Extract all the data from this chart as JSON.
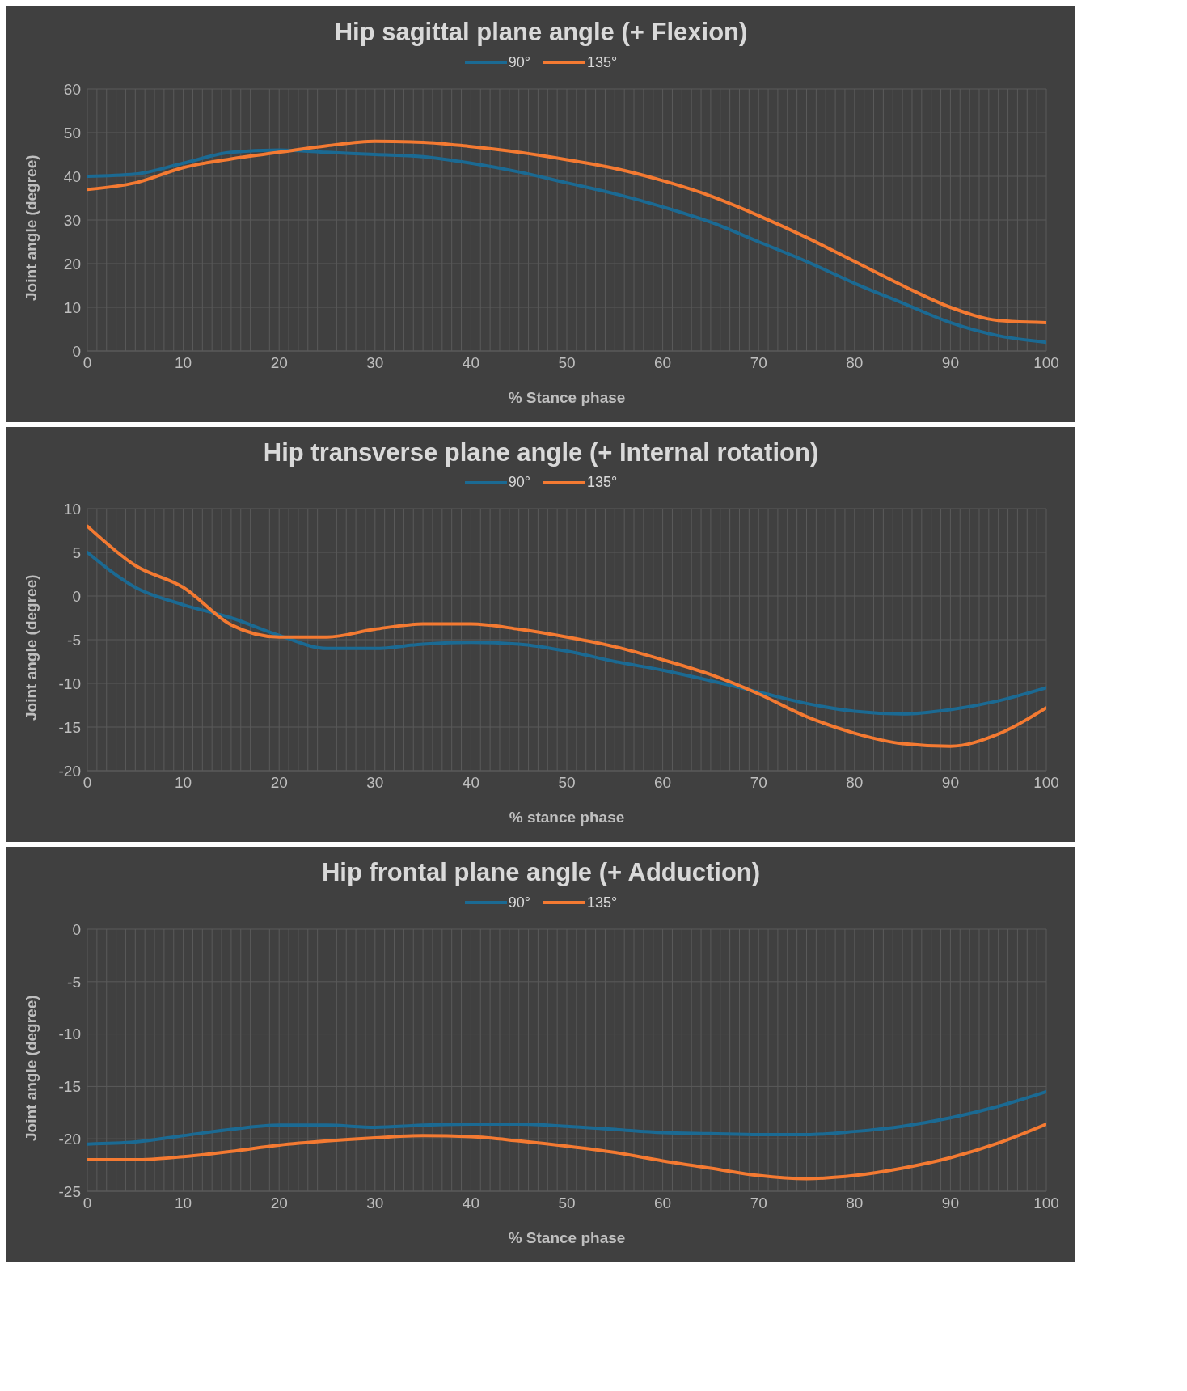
{
  "chart_data": [
    {
      "type": "line",
      "title": "Hip sagittal plane angle (+ Flexion)",
      "xlabel": "% Stance phase",
      "ylabel": "Joint angle (degree)",
      "legend": "top",
      "grid": true,
      "marker": "none",
      "line_style": "solid",
      "x": [
        0,
        5,
        10,
        15,
        20,
        25,
        30,
        35,
        40,
        45,
        50,
        55,
        60,
        65,
        70,
        75,
        80,
        85,
        90,
        95,
        100
      ],
      "series": [
        {
          "name": "90°",
          "color": "#1b6a93",
          "values": [
            40,
            40.5,
            43,
            45.5,
            46,
            45.5,
            45,
            44.5,
            43,
            41,
            38.5,
            36,
            33,
            29.5,
            25,
            20.5,
            15.5,
            11,
            6.5,
            3.5,
            2
          ]
        },
        {
          "name": "135°",
          "color": "#f47a32",
          "values": [
            37,
            38.5,
            42,
            44,
            45.5,
            47,
            48,
            47.8,
            46.8,
            45.5,
            43.8,
            41.8,
            39,
            35.5,
            31,
            26,
            20.5,
            15,
            10,
            7,
            6.5
          ]
        }
      ],
      "xlim": [
        0,
        100
      ],
      "ylim": [
        0,
        60
      ],
      "yticks": [
        0,
        10,
        20,
        30,
        40,
        50,
        60
      ],
      "xticks": [
        0,
        {
          "value": 1,
          "label": null
        },
        {
          "value": 2,
          "label": null
        },
        {
          "value": 3,
          "label": null
        },
        {
          "value": 4,
          "label": null
        },
        {
          "value": 5,
          "label": null
        },
        {
          "value": 6,
          "label": null
        },
        {
          "value": 7,
          "label": null
        },
        {
          "value": 8,
          "label": null
        },
        {
          "value": 9,
          "label": null
        },
        10,
        {
          "value": 11,
          "label": null
        },
        {
          "value": 12,
          "label": null
        },
        {
          "value": 13,
          "label": null
        },
        {
          "value": 14,
          "label": null
        },
        {
          "value": 15,
          "label": null
        },
        {
          "value": 16,
          "label": null
        },
        {
          "value": 17,
          "label": null
        },
        {
          "value": 18,
          "label": null
        },
        {
          "value": 19,
          "label": null
        },
        20,
        {
          "value": 21,
          "label": null
        },
        {
          "value": 22,
          "label": null
        },
        {
          "value": 23,
          "label": null
        },
        {
          "value": 24,
          "label": null
        },
        {
          "value": 25,
          "label": null
        },
        {
          "value": 26,
          "label": null
        },
        {
          "value": 27,
          "label": null
        },
        {
          "value": 28,
          "label": null
        },
        {
          "value": 29,
          "label": null
        },
        30,
        {
          "value": 31,
          "label": null
        },
        {
          "value": 32,
          "label": null
        },
        {
          "value": 33,
          "label": null
        },
        {
          "value": 34,
          "label": null
        },
        {
          "value": 35,
          "label": null
        },
        {
          "value": 36,
          "label": null
        },
        {
          "value": 37,
          "label": null
        },
        {
          "value": 38,
          "label": null
        },
        {
          "value": 39,
          "label": null
        },
        40,
        {
          "value": 41,
          "label": null
        },
        {
          "value": 42,
          "label": null
        },
        {
          "value": 43,
          "label": null
        },
        {
          "value": 44,
          "label": null
        },
        {
          "value": 45,
          "label": null
        },
        {
          "value": 46,
          "label": null
        },
        {
          "value": 47,
          "label": null
        },
        {
          "value": 48,
          "label": null
        },
        {
          "value": 49,
          "label": null
        },
        50,
        {
          "value": 51,
          "label": null
        },
        {
          "value": 52,
          "label": null
        },
        {
          "value": 53,
          "label": null
        },
        {
          "value": 54,
          "label": null
        },
        {
          "value": 55,
          "label": null
        },
        {
          "value": 56,
          "label": null
        },
        {
          "value": 57,
          "label": null
        },
        {
          "value": 58,
          "label": null
        },
        {
          "value": 59,
          "label": null
        },
        60,
        {
          "value": 61,
          "label": null
        },
        {
          "value": 62,
          "label": null
        },
        {
          "value": 63,
          "label": null
        },
        {
          "value": 64,
          "label": null
        },
        {
          "value": 65,
          "label": null
        },
        {
          "value": 66,
          "label": null
        },
        {
          "value": 67,
          "label": null
        },
        {
          "value": 68,
          "label": null
        },
        {
          "value": 69,
          "label": null
        },
        70,
        {
          "value": 71,
          "label": null
        },
        {
          "value": 72,
          "label": null
        },
        {
          "value": 73,
          "label": null
        },
        {
          "value": 74,
          "label": null
        },
        {
          "value": 75,
          "label": null
        },
        {
          "value": 76,
          "label": null
        },
        {
          "value": 77,
          "label": null
        },
        {
          "value": 78,
          "label": null
        },
        {
          "value": 79,
          "label": null
        },
        80,
        {
          "value": 81,
          "label": null
        },
        {
          "value": 82,
          "label": null
        },
        {
          "value": 83,
          "label": null
        },
        {
          "value": 84,
          "label": null
        },
        {
          "value": 85,
          "label": null
        },
        {
          "value": 86,
          "label": null
        },
        {
          "value": 87,
          "label": null
        },
        {
          "value": 88,
          "label": null
        },
        {
          "value": 89,
          "label": null
        },
        90,
        {
          "value": 91,
          "label": null
        },
        {
          "value": 92,
          "label": null
        },
        {
          "value": 93,
          "label": null
        },
        {
          "value": 94,
          "label": null
        },
        {
          "value": 95,
          "label": null
        },
        {
          "value": 96,
          "label": null
        },
        {
          "value": 97,
          "label": null
        },
        {
          "value": 98,
          "label": null
        },
        {
          "value": 99,
          "label": null
        },
        100
      ]
    },
    {
      "type": "line",
      "title": "Hip transverse plane angle (+ Internal rotation)",
      "xlabel": "% stance phase",
      "ylabel": "Joint angle (degree)",
      "legend": "top",
      "grid": true,
      "marker": "none",
      "line_style": "solid",
      "x": [
        0,
        5,
        10,
        15,
        20,
        25,
        30,
        35,
        40,
        45,
        50,
        55,
        60,
        65,
        70,
        75,
        80,
        85,
        90,
        95,
        100
      ],
      "series": [
        {
          "name": "90°",
          "color": "#1b6a93",
          "values": [
            5,
            1,
            -1,
            -2.5,
            -4.5,
            -6,
            -6,
            -5.5,
            -5.3,
            -5.5,
            -6.3,
            -7.5,
            -8.5,
            -9.7,
            -11,
            -12.3,
            -13.2,
            -13.5,
            -13,
            -12,
            -10.5
          ]
        },
        {
          "name": "135°",
          "color": "#f47a32",
          "values": [
            8,
            3.5,
            1,
            -3.3,
            -4.7,
            -4.7,
            -3.8,
            -3.2,
            -3.2,
            -3.8,
            -4.7,
            -5.8,
            -7.3,
            -9,
            -11.2,
            -13.8,
            -15.7,
            -16.9,
            -17.2,
            -15.8,
            -12.8
          ]
        }
      ],
      "xlim": [
        0,
        100
      ],
      "ylim": [
        -20,
        10
      ],
      "yticks": [
        -20,
        -15,
        -10,
        -5,
        0,
        5,
        10
      ],
      "xticks": [
        0,
        {
          "value": 1,
          "label": null
        },
        {
          "value": 2,
          "label": null
        },
        {
          "value": 3,
          "label": null
        },
        {
          "value": 4,
          "label": null
        },
        {
          "value": 5,
          "label": null
        },
        {
          "value": 6,
          "label": null
        },
        {
          "value": 7,
          "label": null
        },
        {
          "value": 8,
          "label": null
        },
        {
          "value": 9,
          "label": null
        },
        10,
        {
          "value": 11,
          "label": null
        },
        {
          "value": 12,
          "label": null
        },
        {
          "value": 13,
          "label": null
        },
        {
          "value": 14,
          "label": null
        },
        {
          "value": 15,
          "label": null
        },
        {
          "value": 16,
          "label": null
        },
        {
          "value": 17,
          "label": null
        },
        {
          "value": 18,
          "label": null
        },
        {
          "value": 19,
          "label": null
        },
        20,
        {
          "value": 21,
          "label": null
        },
        {
          "value": 22,
          "label": null
        },
        {
          "value": 23,
          "label": null
        },
        {
          "value": 24,
          "label": null
        },
        {
          "value": 25,
          "label": null
        },
        {
          "value": 26,
          "label": null
        },
        {
          "value": 27,
          "label": null
        },
        {
          "value": 28,
          "label": null
        },
        {
          "value": 29,
          "label": null
        },
        30,
        {
          "value": 31,
          "label": null
        },
        {
          "value": 32,
          "label": null
        },
        {
          "value": 33,
          "label": null
        },
        {
          "value": 34,
          "label": null
        },
        {
          "value": 35,
          "label": null
        },
        {
          "value": 36,
          "label": null
        },
        {
          "value": 37,
          "label": null
        },
        {
          "value": 38,
          "label": null
        },
        {
          "value": 39,
          "label": null
        },
        40,
        {
          "value": 41,
          "label": null
        },
        {
          "value": 42,
          "label": null
        },
        {
          "value": 43,
          "label": null
        },
        {
          "value": 44,
          "label": null
        },
        {
          "value": 45,
          "label": null
        },
        {
          "value": 46,
          "label": null
        },
        {
          "value": 47,
          "label": null
        },
        {
          "value": 48,
          "label": null
        },
        {
          "value": 49,
          "label": null
        },
        50,
        {
          "value": 51,
          "label": null
        },
        {
          "value": 52,
          "label": null
        },
        {
          "value": 53,
          "label": null
        },
        {
          "value": 54,
          "label": null
        },
        {
          "value": 55,
          "label": null
        },
        {
          "value": 56,
          "label": null
        },
        {
          "value": 57,
          "label": null
        },
        {
          "value": 58,
          "label": null
        },
        {
          "value": 59,
          "label": null
        },
        60,
        {
          "value": 61,
          "label": null
        },
        {
          "value": 62,
          "label": null
        },
        {
          "value": 63,
          "label": null
        },
        {
          "value": 64,
          "label": null
        },
        {
          "value": 65,
          "label": null
        },
        {
          "value": 66,
          "label": null
        },
        {
          "value": 67,
          "label": null
        },
        {
          "value": 68,
          "label": null
        },
        {
          "value": 69,
          "label": null
        },
        70,
        {
          "value": 71,
          "label": null
        },
        {
          "value": 72,
          "label": null
        },
        {
          "value": 73,
          "label": null
        },
        {
          "value": 74,
          "label": null
        },
        {
          "value": 75,
          "label": null
        },
        {
          "value": 76,
          "label": null
        },
        {
          "value": 77,
          "label": null
        },
        {
          "value": 78,
          "label": null
        },
        {
          "value": 79,
          "label": null
        },
        80,
        {
          "value": 81,
          "label": null
        },
        {
          "value": 82,
          "label": null
        },
        {
          "value": 83,
          "label": null
        },
        {
          "value": 84,
          "label": null
        },
        {
          "value": 85,
          "label": null
        },
        {
          "value": 86,
          "label": null
        },
        {
          "value": 87,
          "label": null
        },
        {
          "value": 88,
          "label": null
        },
        {
          "value": 89,
          "label": null
        },
        90,
        {
          "value": 91,
          "label": null
        },
        {
          "value": 92,
          "label": null
        },
        {
          "value": 93,
          "label": null
        },
        {
          "value": 94,
          "label": null
        },
        {
          "value": 95,
          "label": null
        },
        {
          "value": 96,
          "label": null
        },
        {
          "value": 97,
          "label": null
        },
        {
          "value": 98,
          "label": null
        },
        {
          "value": 99,
          "label": null
        },
        100
      ]
    },
    {
      "type": "line",
      "title": "Hip frontal plane angle (+ Adduction)",
      "xlabel": "% Stance phase",
      "ylabel": "Joint angle (degree)",
      "legend": "top",
      "grid": true,
      "marker": "none",
      "line_style": "solid",
      "x": [
        0,
        5,
        10,
        15,
        20,
        25,
        30,
        35,
        40,
        45,
        50,
        55,
        60,
        65,
        70,
        75,
        80,
        85,
        90,
        95,
        100
      ],
      "series": [
        {
          "name": "90°",
          "color": "#1b6a93",
          "values": [
            -20.5,
            -20.3,
            -19.7,
            -19.1,
            -18.7,
            -18.7,
            -18.9,
            -18.7,
            -18.6,
            -18.6,
            -18.8,
            -19.1,
            -19.4,
            -19.5,
            -19.6,
            -19.6,
            -19.3,
            -18.8,
            -18,
            -16.9,
            -15.5
          ]
        },
        {
          "name": "135°",
          "color": "#f47a32",
          "values": [
            -22,
            -22,
            -21.7,
            -21.2,
            -20.6,
            -20.2,
            -19.9,
            -19.7,
            -19.8,
            -20.2,
            -20.7,
            -21.3,
            -22.1,
            -22.8,
            -23.5,
            -23.8,
            -23.5,
            -22.8,
            -21.8,
            -20.4,
            -18.6
          ]
        }
      ],
      "xlim": [
        0,
        100
      ],
      "ylim": [
        -25,
        0
      ],
      "yticks": [
        -25,
        -20,
        -15,
        -10,
        -5,
        0
      ],
      "xticks": [
        0,
        {
          "value": 1,
          "label": null
        },
        {
          "value": 2,
          "label": null
        },
        {
          "value": 3,
          "label": null
        },
        {
          "value": 4,
          "label": null
        },
        {
          "value": 5,
          "label": null
        },
        {
          "value": 6,
          "label": null
        },
        {
          "value": 7,
          "label": null
        },
        {
          "value": 8,
          "label": null
        },
        {
          "value": 9,
          "label": null
        },
        10,
        {
          "value": 11,
          "label": null
        },
        {
          "value": 12,
          "label": null
        },
        {
          "value": 13,
          "label": null
        },
        {
          "value": 14,
          "label": null
        },
        {
          "value": 15,
          "label": null
        },
        {
          "value": 16,
          "label": null
        },
        {
          "value": 17,
          "label": null
        },
        {
          "value": 18,
          "label": null
        },
        {
          "value": 19,
          "label": null
        },
        20,
        {
          "value": 21,
          "label": null
        },
        {
          "value": 22,
          "label": null
        },
        {
          "value": 23,
          "label": null
        },
        {
          "value": 24,
          "label": null
        },
        {
          "value": 25,
          "label": null
        },
        {
          "value": 26,
          "label": null
        },
        {
          "value": 27,
          "label": null
        },
        {
          "value": 28,
          "label": null
        },
        {
          "value": 29,
          "label": null
        },
        30,
        {
          "value": 31,
          "label": null
        },
        {
          "value": 32,
          "label": null
        },
        {
          "value": 33,
          "label": null
        },
        {
          "value": 34,
          "label": null
        },
        {
          "value": 35,
          "label": null
        },
        {
          "value": 36,
          "label": null
        },
        {
          "value": 37,
          "label": null
        },
        {
          "value": 38,
          "label": null
        },
        {
          "value": 39,
          "label": null
        },
        40,
        {
          "value": 41,
          "label": null
        },
        {
          "value": 42,
          "label": null
        },
        {
          "value": 43,
          "label": null
        },
        {
          "value": 44,
          "label": null
        },
        {
          "value": 45,
          "label": null
        },
        {
          "value": 46,
          "label": null
        },
        {
          "value": 47,
          "label": null
        },
        {
          "value": 48,
          "label": null
        },
        {
          "value": 49,
          "label": null
        },
        50,
        {
          "value": 51,
          "label": null
        },
        {
          "value": 52,
          "label": null
        },
        {
          "value": 53,
          "label": null
        },
        {
          "value": 54,
          "label": null
        },
        {
          "value": 55,
          "label": null
        },
        {
          "value": 56,
          "label": null
        },
        {
          "value": 57,
          "label": null
        },
        {
          "value": 58,
          "label": null
        },
        {
          "value": 59,
          "label": null
        },
        60,
        {
          "value": 61,
          "label": null
        },
        {
          "value": 62,
          "label": null
        },
        {
          "value": 63,
          "label": null
        },
        {
          "value": 64,
          "label": null
        },
        {
          "value": 65,
          "label": null
        },
        {
          "value": 66,
          "label": null
        },
        {
          "value": 67,
          "label": null
        },
        {
          "value": 68,
          "label": null
        },
        {
          "value": 69,
          "label": null
        },
        70,
        {
          "value": 71,
          "label": null
        },
        {
          "value": 72,
          "label": null
        },
        {
          "value": 73,
          "label": null
        },
        {
          "value": 74,
          "label": null
        },
        {
          "value": 75,
          "label": null
        },
        {
          "value": 76,
          "label": null
        },
        {
          "value": 77,
          "label": null
        },
        {
          "value": 78,
          "label": null
        },
        {
          "value": 79,
          "label": null
        },
        80,
        {
          "value": 81,
          "label": null
        },
        {
          "value": 82,
          "label": null
        },
        {
          "value": 83,
          "label": null
        },
        {
          "value": 84,
          "label": null
        },
        {
          "value": 85,
          "label": null
        },
        {
          "value": 86,
          "label": null
        },
        {
          "value": 87,
          "label": null
        },
        {
          "value": 88,
          "label": null
        },
        {
          "value": 89,
          "label": null
        },
        90,
        {
          "value": 91,
          "label": null
        },
        {
          "value": 92,
          "label": null
        },
        {
          "value": 93,
          "label": null
        },
        {
          "value": 94,
          "label": null
        },
        {
          "value": 95,
          "label": null
        },
        {
          "value": 96,
          "label": null
        },
        {
          "value": 97,
          "label": null
        },
        {
          "value": 98,
          "label": null
        },
        {
          "value": 99,
          "label": null
        },
        100
      ]
    }
  ]
}
